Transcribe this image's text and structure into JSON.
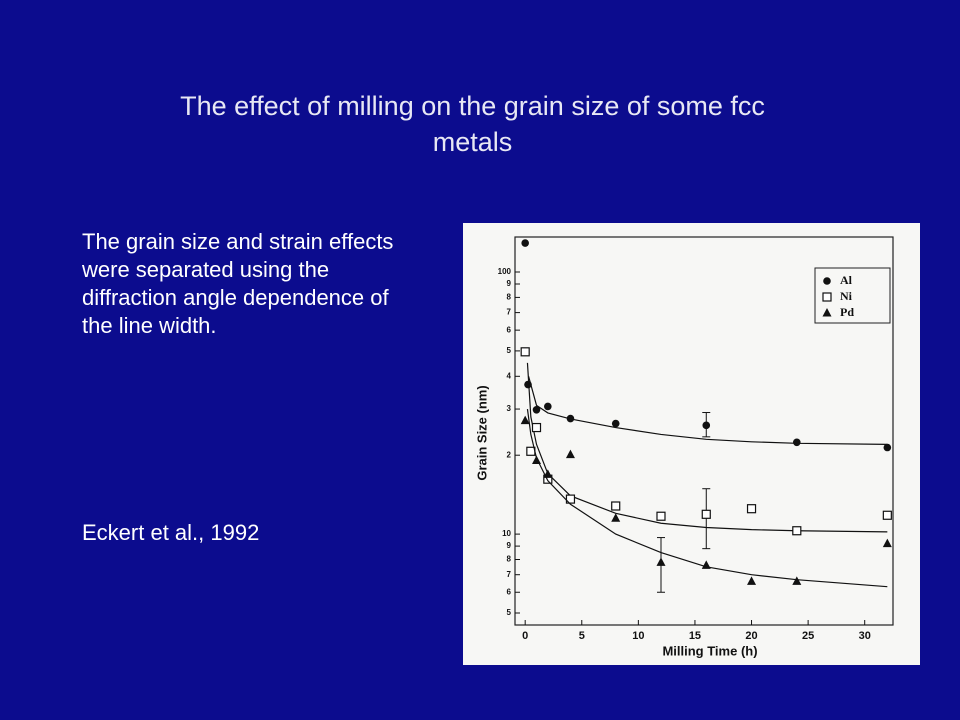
{
  "slide": {
    "title": "The effect of milling on the grain size of some fcc metals",
    "body": "The grain size and strain effects were separated using the diffraction angle dependence of the line width.",
    "citation": "Eckert et al., 1992"
  },
  "chart_data": {
    "type": "scatter",
    "x_label": "Milling Time (h)",
    "y_label": "Grain Size (nm)",
    "yscale": "log",
    "xlim": [
      -0.9,
      32.5
    ],
    "ylim": [
      4.5,
      136
    ],
    "xticks": [
      0,
      5,
      10,
      15,
      20,
      25,
      30
    ],
    "yticks": [
      5,
      6,
      7,
      8,
      9,
      10,
      {
        "value": 20,
        "label": "2"
      },
      {
        "value": 30,
        "label": "3"
      },
      {
        "value": 40,
        "label": "4"
      },
      {
        "value": 50,
        "label": "5"
      },
      {
        "value": 60,
        "label": "6"
      },
      {
        "value": 70,
        "label": "7"
      },
      {
        "value": 80,
        "label": "8"
      },
      {
        "value": 90,
        "label": "9"
      },
      100
    ],
    "legend": "upper right",
    "series": [
      {
        "name": "Al",
        "marker": "circle",
        "color": "#111111",
        "x": [
          0,
          0.25,
          1,
          2,
          4,
          8,
          16,
          24,
          32
        ],
        "values": [
          129,
          37.2,
          29.8,
          30.7,
          27.6,
          26.4,
          26.0,
          22.4,
          21.4
        ],
        "error_bars": [
          {
            "x": 16,
            "low": 23.5,
            "high": 29.1
          }
        ],
        "fit": {
          "x": [
            0.3,
            1,
            2,
            4,
            8,
            12,
            16,
            20,
            24,
            32
          ],
          "values": [
            40,
            31,
            29,
            27.5,
            25.5,
            24,
            23,
            22.5,
            22.2,
            22
          ]
        }
      },
      {
        "name": "Ni",
        "marker": "square",
        "color": "#111111",
        "x": [
          0,
          0.5,
          1,
          2,
          4,
          8,
          12,
          16,
          20,
          24,
          32
        ],
        "values": [
          49.6,
          20.7,
          25.5,
          16.2,
          13.6,
          12.8,
          11.7,
          11.9,
          12.5,
          10.3,
          11.8
        ],
        "error_bars": [
          {
            "x": 16,
            "low": 8.8,
            "high": 14.9
          }
        ],
        "fit": {
          "x": [
            0.2,
            0.5,
            1,
            2,
            4,
            8,
            12,
            16,
            20,
            24,
            32
          ],
          "values": [
            45,
            28,
            22,
            17,
            14,
            12,
            11,
            10.6,
            10.4,
            10.3,
            10.2
          ]
        }
      },
      {
        "name": "Pd",
        "marker": "triangle",
        "color": "#111111",
        "x": [
          0,
          1,
          2,
          4,
          8,
          12,
          16,
          20,
          24,
          32
        ],
        "values": [
          27.1,
          19.1,
          16.9,
          20.1,
          11.5,
          7.8,
          7.6,
          6.6,
          6.6,
          9.2
        ],
        "error_bars": [
          {
            "x": 12,
            "low": 6.0,
            "high": 9.7
          }
        ],
        "fit": {
          "x": [
            0.2,
            0.5,
            1,
            2,
            4,
            8,
            12,
            16,
            20,
            24,
            32
          ],
          "values": [
            30,
            24,
            19.5,
            16,
            13,
            10,
            8.5,
            7.5,
            7,
            6.7,
            6.3
          ]
        }
      }
    ]
  }
}
